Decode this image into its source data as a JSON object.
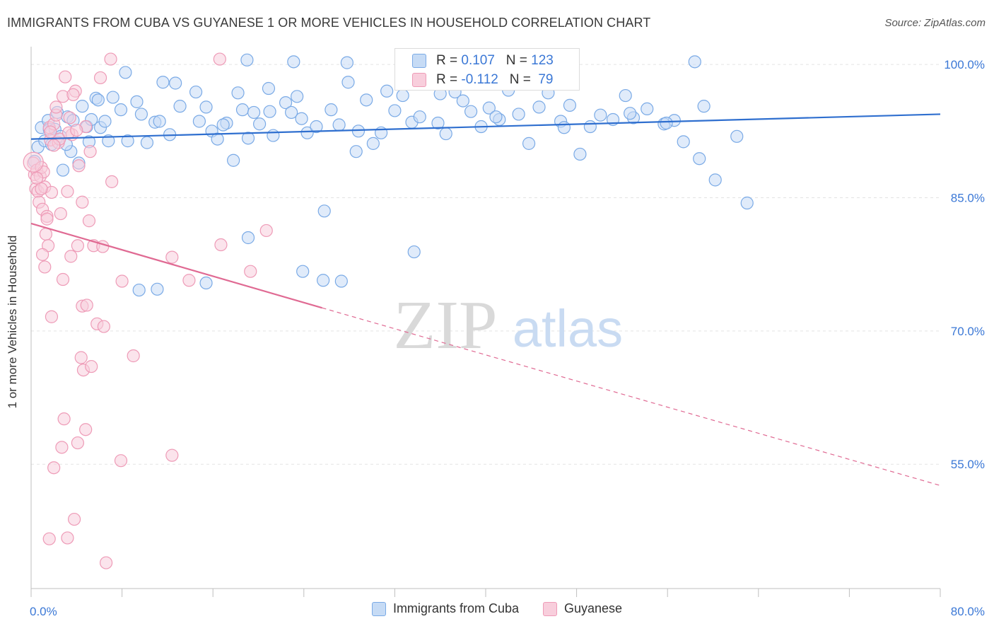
{
  "title": "IMMIGRANTS FROM CUBA VS GUYANESE 1 OR MORE VEHICLES IN HOUSEHOLD CORRELATION CHART",
  "source": "Source: ZipAtlas.com",
  "watermark": {
    "zip": "ZIP",
    "atlas": "atlas"
  },
  "stats": [
    {
      "r_label": "R = ",
      "r_value": "0.107",
      "n_label": "N = ",
      "n_value": "123"
    },
    {
      "r_label": "R = ",
      "r_value": "-0.112",
      "n_label": "N = ",
      "n_value": " 79"
    }
  ],
  "chart_data": {
    "type": "scatter",
    "title": "IMMIGRANTS FROM CUBA VS GUYANESE 1 OR MORE VEHICLES IN HOUSEHOLD CORRELATION CHART",
    "xlabel": "",
    "ylabel": "1 or more Vehicles in Household",
    "xlim": [
      0,
      80
    ],
    "ylim": [
      41,
      102
    ],
    "x_tick_labels": [
      "0.0%",
      "80.0%"
    ],
    "y_ticks": [
      100,
      85,
      70,
      55
    ],
    "y_tick_labels": [
      "100.0%",
      "85.0%",
      "70.0%",
      "55.0%"
    ],
    "grid": "horizontal dashed",
    "legend_position": "bottom-center",
    "series": [
      {
        "name": "Immigrants from Cuba",
        "color": "#7aaae6",
        "fill": "#c6dbf5",
        "line_color": "#2f6fcf",
        "r": 0.107,
        "n": 123,
        "trend": [
          [
            0,
            91.6
          ],
          [
            80,
            94.4
          ]
        ],
        "points": [
          [
            0.3,
            89.1
          ],
          [
            0.6,
            90.7
          ],
          [
            0.9,
            92.9
          ],
          [
            1.2,
            91.4
          ],
          [
            1.5,
            93.7
          ],
          [
            1.6,
            92.7
          ],
          [
            1.8,
            91.0
          ],
          [
            2.1,
            92.7
          ],
          [
            2.3,
            94.6
          ],
          [
            2.6,
            91.9
          ],
          [
            2.8,
            88.1
          ],
          [
            3.2,
            94.1
          ],
          [
            3.5,
            90.2
          ],
          [
            3.7,
            93.7
          ],
          [
            4.2,
            88.9
          ],
          [
            4.5,
            95.3
          ],
          [
            4.9,
            93.0
          ],
          [
            5.1,
            91.3
          ],
          [
            5.3,
            93.8
          ],
          [
            5.7,
            96.2
          ],
          [
            6.1,
            92.9
          ],
          [
            6.5,
            93.6
          ],
          [
            6.8,
            91.4
          ],
          [
            7.2,
            96.3
          ],
          [
            7.9,
            94.9
          ],
          [
            8.3,
            99.1
          ],
          [
            8.5,
            91.4
          ],
          [
            9.3,
            95.8
          ],
          [
            9.7,
            94.4
          ],
          [
            10.2,
            91.2
          ],
          [
            10.9,
            93.5
          ],
          [
            11.3,
            93.6
          ],
          [
            11.6,
            98.0
          ],
          [
            12.2,
            92.1
          ],
          [
            12.7,
            97.9
          ],
          [
            13.1,
            95.3
          ],
          [
            14.5,
            96.9
          ],
          [
            14.8,
            93.6
          ],
          [
            15.4,
            95.2
          ],
          [
            15.9,
            92.5
          ],
          [
            16.4,
            91.6
          ],
          [
            17.2,
            93.4
          ],
          [
            17.8,
            89.2
          ],
          [
            18.2,
            96.8
          ],
          [
            18.6,
            94.9
          ],
          [
            19.1,
            91.7
          ],
          [
            19.6,
            94.6
          ],
          [
            20.1,
            93.3
          ],
          [
            20.9,
            97.3
          ],
          [
            21.3,
            92.0
          ],
          [
            22.4,
            95.7
          ],
          [
            22.9,
            94.6
          ],
          [
            23.4,
            96.4
          ],
          [
            23.8,
            93.9
          ],
          [
            24.3,
            92.3
          ],
          [
            25.1,
            93.0
          ],
          [
            25.8,
            83.5
          ],
          [
            26.4,
            94.9
          ],
          [
            27.1,
            93.2
          ],
          [
            27.9,
            98.0
          ],
          [
            28.6,
            90.2
          ],
          [
            29.5,
            96.0
          ],
          [
            30.1,
            91.1
          ],
          [
            30.8,
            92.3
          ],
          [
            31.3,
            97.0
          ],
          [
            32.0,
            94.8
          ],
          [
            32.7,
            96.5
          ],
          [
            33.5,
            93.5
          ],
          [
            34.2,
            94.1
          ],
          [
            34.9,
            98.4
          ],
          [
            35.8,
            93.4
          ],
          [
            36.5,
            92.2
          ],
          [
            37.3,
            96.9
          ],
          [
            38.0,
            95.9
          ],
          [
            38.7,
            94.7
          ],
          [
            39.6,
            93.0
          ],
          [
            40.3,
            95.1
          ],
          [
            41.2,
            93.8
          ],
          [
            42.0,
            97.1
          ],
          [
            42.9,
            94.4
          ],
          [
            43.8,
            91.1
          ],
          [
            44.7,
            95.2
          ],
          [
            45.5,
            96.8
          ],
          [
            46.6,
            93.6
          ],
          [
            47.4,
            95.4
          ],
          [
            48.3,
            89.9
          ],
          [
            49.2,
            93.0
          ],
          [
            50.1,
            94.3
          ],
          [
            51.2,
            93.8
          ],
          [
            52.3,
            96.5
          ],
          [
            53.0,
            94.0
          ],
          [
            54.2,
            95.0
          ],
          [
            55.7,
            93.3
          ],
          [
            56.6,
            93.7
          ],
          [
            57.4,
            91.3
          ],
          [
            58.8,
            89.4
          ],
          [
            60.2,
            87.0
          ],
          [
            62.1,
            91.9
          ],
          [
            63.0,
            84.4
          ],
          [
            23.9,
            76.7
          ],
          [
            25.7,
            75.7
          ],
          [
            27.3,
            75.6
          ],
          [
            33.7,
            78.9
          ],
          [
            19.1,
            80.5
          ],
          [
            15.4,
            75.4
          ],
          [
            9.5,
            74.6
          ],
          [
            11.1,
            74.7
          ],
          [
            3.1,
            91.0
          ],
          [
            5.9,
            96.0
          ],
          [
            16.9,
            93.2
          ],
          [
            21.0,
            94.7
          ],
          [
            28.8,
            92.5
          ],
          [
            36.0,
            96.7
          ],
          [
            40.9,
            94.1
          ],
          [
            46.9,
            92.9
          ],
          [
            52.7,
            94.5
          ],
          [
            55.9,
            93.4
          ],
          [
            59.2,
            95.3
          ],
          [
            37.9,
            98.5
          ],
          [
            19.0,
            100.5
          ],
          [
            23.1,
            100.3
          ],
          [
            27.8,
            100.2
          ],
          [
            36.7,
            100.4
          ],
          [
            58.4,
            100.3
          ]
        ]
      },
      {
        "name": "Guyanese",
        "color": "#ee9bb7",
        "fill": "#f8cedc",
        "line_color": "#e06a93",
        "r": -0.112,
        "n": 79,
        "trend_solid": [
          [
            0,
            82.1
          ],
          [
            25.6,
            72.6
          ]
        ],
        "trend_dashed": [
          [
            25.6,
            72.6
          ],
          [
            80,
            52.6
          ]
        ],
        "points": [
          [
            0.2,
            88.9
          ],
          [
            0.3,
            87.6
          ],
          [
            0.4,
            86.0
          ],
          [
            0.5,
            88.1
          ],
          [
            0.6,
            85.7
          ],
          [
            0.7,
            84.5
          ],
          [
            0.8,
            87.4
          ],
          [
            0.9,
            88.4
          ],
          [
            1.0,
            83.7
          ],
          [
            1.2,
            86.2
          ],
          [
            1.3,
            80.9
          ],
          [
            1.4,
            82.9
          ],
          [
            1.5,
            79.6
          ],
          [
            1.6,
            92.9
          ],
          [
            1.7,
            91.5
          ],
          [
            1.8,
            85.6
          ],
          [
            2.0,
            93.3
          ],
          [
            2.2,
            94.3
          ],
          [
            2.4,
            91.2
          ],
          [
            2.6,
            83.2
          ],
          [
            2.8,
            96.4
          ],
          [
            3.0,
            98.6
          ],
          [
            3.2,
            85.7
          ],
          [
            3.4,
            94.0
          ],
          [
            3.6,
            92.1
          ],
          [
            3.9,
            97.0
          ],
          [
            4.2,
            88.6
          ],
          [
            4.5,
            84.5
          ],
          [
            4.8,
            93.0
          ],
          [
            5.2,
            90.2
          ],
          [
            5.5,
            79.6
          ],
          [
            6.1,
            98.5
          ],
          [
            7.0,
            100.6
          ],
          [
            8.0,
            75.6
          ],
          [
            1.0,
            78.6
          ],
          [
            1.2,
            77.2
          ],
          [
            1.8,
            71.6
          ],
          [
            2.8,
            75.8
          ],
          [
            3.5,
            78.4
          ],
          [
            4.1,
            79.6
          ],
          [
            4.5,
            72.8
          ],
          [
            4.9,
            72.9
          ],
          [
            5.8,
            70.8
          ],
          [
            6.4,
            70.5
          ],
          [
            4.4,
            67.0
          ],
          [
            4.6,
            65.6
          ],
          [
            5.3,
            66.0
          ],
          [
            9.0,
            67.2
          ],
          [
            2.9,
            60.1
          ],
          [
            4.8,
            58.9
          ],
          [
            2.7,
            56.9
          ],
          [
            4.1,
            57.4
          ],
          [
            7.9,
            55.4
          ],
          [
            12.4,
            56.0
          ],
          [
            2.0,
            54.6
          ],
          [
            3.8,
            48.8
          ],
          [
            1.6,
            46.6
          ],
          [
            3.2,
            46.7
          ],
          [
            6.6,
            43.9
          ],
          [
            12.4,
            78.3
          ],
          [
            13.9,
            75.7
          ],
          [
            16.7,
            79.7
          ],
          [
            19.3,
            76.7
          ],
          [
            20.7,
            81.3
          ],
          [
            16.6,
            100.6
          ],
          [
            2.2,
            95.2
          ],
          [
            3.7,
            96.6
          ],
          [
            1.4,
            82.6
          ],
          [
            2.5,
            91.6
          ],
          [
            3.3,
            92.3
          ],
          [
            0.9,
            86.0
          ],
          [
            1.1,
            87.9
          ],
          [
            2.0,
            90.9
          ],
          [
            4.0,
            92.6
          ],
          [
            5.1,
            82.4
          ],
          [
            6.3,
            79.5
          ],
          [
            7.1,
            86.8
          ],
          [
            1.7,
            92.4
          ],
          [
            0.5,
            87.2
          ]
        ]
      }
    ]
  }
}
